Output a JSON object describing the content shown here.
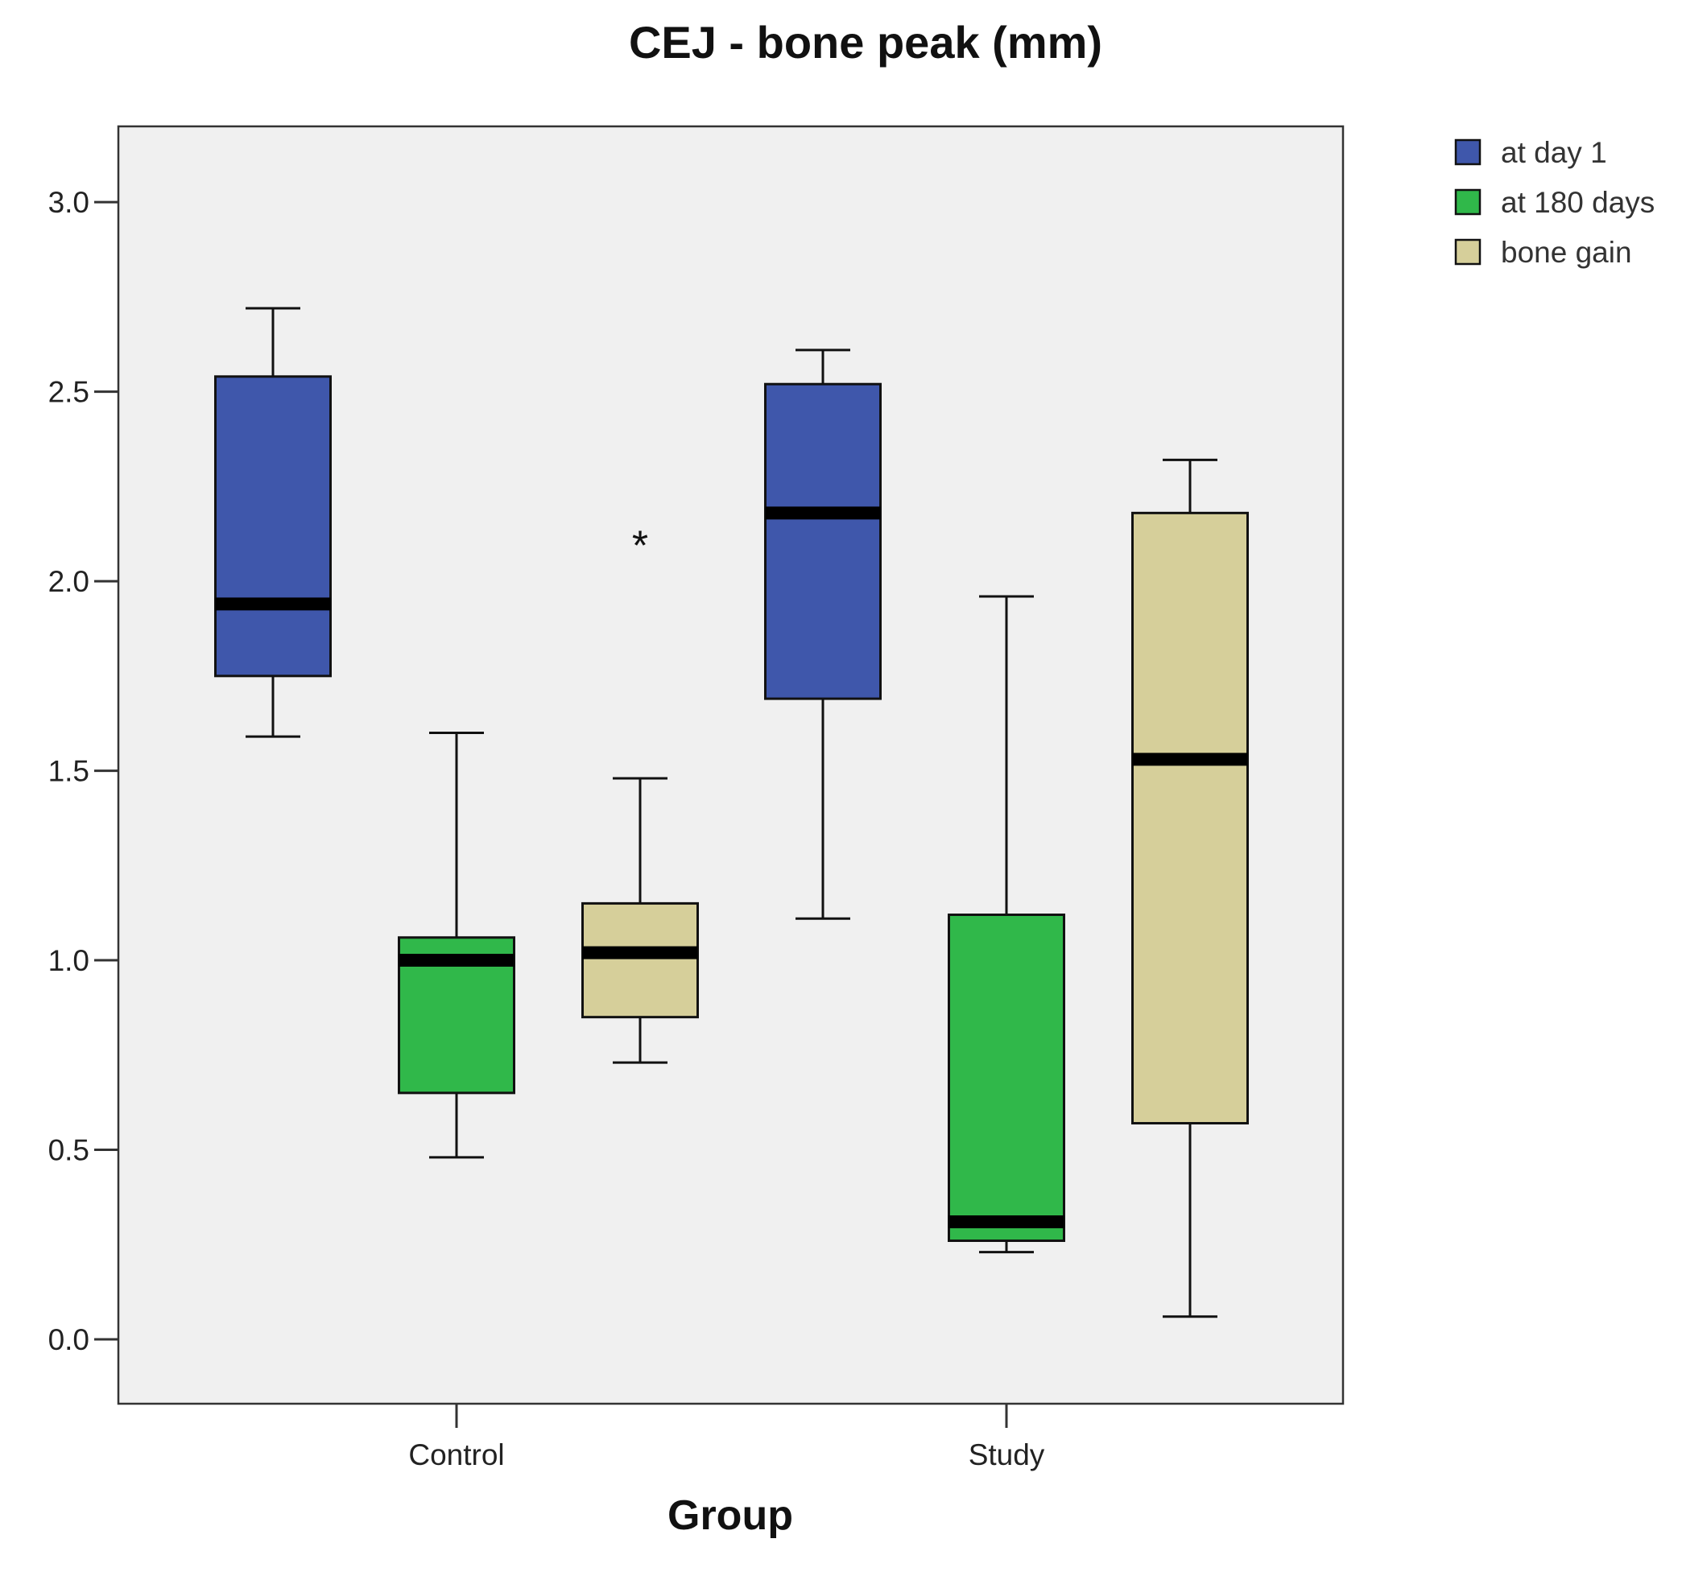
{
  "chart_data": {
    "type": "boxplot",
    "title": "CEJ - bone peak (mm)",
    "xlabel": "Group",
    "ylabel": "",
    "ylim": [
      -0.17,
      3.2
    ],
    "yticks": [
      0.0,
      0.5,
      1.0,
      1.5,
      2.0,
      2.5,
      3.0
    ],
    "ytick_labels": [
      "0.0",
      "0.5",
      "1.0",
      "1.5",
      "2.0",
      "2.5",
      "3.0"
    ],
    "categories": [
      "Control",
      "Study"
    ],
    "legend": {
      "position": "top-right",
      "entries": [
        {
          "name": "at day 1",
          "color": "#3f57ab"
        },
        {
          "name": "at 180 days",
          "color": "#30b84a"
        },
        {
          "name": "bone gain",
          "color": "#d6cf9a"
        }
      ]
    },
    "background": "#f0f0f0",
    "series": [
      {
        "name": "at day 1",
        "color": "#3f57ab",
        "boxes": [
          {
            "category": "Control",
            "whisker_low": 1.59,
            "q1": 1.75,
            "median": 1.94,
            "q3": 2.54,
            "whisker_high": 2.72
          },
          {
            "category": "Study",
            "whisker_low": 1.11,
            "q1": 1.69,
            "median": 2.18,
            "q3": 2.52,
            "whisker_high": 2.61
          }
        ]
      },
      {
        "name": "at 180 days",
        "color": "#30b84a",
        "boxes": [
          {
            "category": "Control",
            "whisker_low": 0.48,
            "q1": 0.65,
            "median": 1.0,
            "q3": 1.06,
            "whisker_high": 1.6
          },
          {
            "category": "Study",
            "whisker_low": 0.23,
            "q1": 0.26,
            "median": 0.31,
            "q3": 1.12,
            "whisker_high": 1.96
          }
        ]
      },
      {
        "name": "bone gain",
        "color": "#d6cf9a",
        "boxes": [
          {
            "category": "Control",
            "whisker_low": 0.73,
            "q1": 0.85,
            "median": 1.02,
            "q3": 1.15,
            "whisker_high": 1.48,
            "outliers": [
              2.12
            ]
          },
          {
            "category": "Study",
            "whisker_low": 0.06,
            "q1": 0.57,
            "median": 1.53,
            "q3": 2.18,
            "whisker_high": 2.32
          }
        ]
      }
    ],
    "outlier_symbol": "*"
  }
}
